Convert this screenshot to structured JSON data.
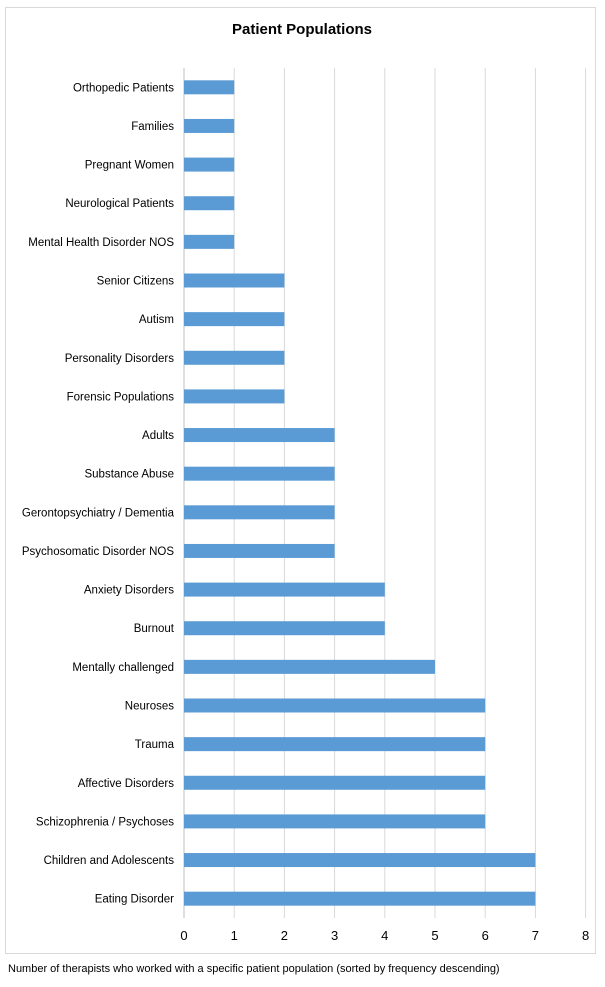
{
  "chart_data": {
    "type": "bar",
    "orientation": "horizontal",
    "title": "Patient Populations",
    "xlabel": "",
    "ylabel": "",
    "xlim": [
      0,
      8
    ],
    "x_ticks": [
      "0",
      "1",
      "2",
      "3",
      "4",
      "5",
      "6",
      "7",
      "8"
    ],
    "grid": "vertical",
    "legend": "none",
    "bar_color": "#5b9bd5",
    "categories": [
      "Orthopedic Patients",
      "Families",
      "Pregnant Women",
      "Neurological Patients",
      "Mental Health Disorder NOS",
      "Senior Citizens",
      "Autism",
      "Personality Disorders",
      "Forensic Populations",
      "Adults",
      "Substance Abuse",
      "Gerontopsychiatry / Dementia",
      "Psychosomatic Disorder NOS",
      "Anxiety Disorders",
      "Burnout",
      "Mentally challenged",
      "Neuroses",
      "Trauma",
      "Affective Disorders",
      "Schizophrenia / Psychoses",
      "Children and Adolescents",
      "Eating Disorder"
    ],
    "values": [
      1,
      1,
      1,
      1,
      1,
      2,
      2,
      2,
      2,
      3,
      3,
      3,
      3,
      4,
      4,
      5,
      6,
      6,
      6,
      6,
      7,
      7
    ]
  },
  "caption": "Number of therapists who worked with a specific patient population (sorted by frequency descending)"
}
